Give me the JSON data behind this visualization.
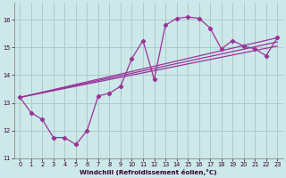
{
  "xlabel": "Windchill (Refroidissement éolien,°C)",
  "bg_color": "#cce8e8",
  "line_color": "#993399",
  "grid_color": "#aacccc",
  "xlim": [
    -0.5,
    23.5
  ],
  "ylim": [
    11,
    16.6
  ],
  "yticks": [
    11,
    12,
    13,
    14,
    15,
    16
  ],
  "xticks": [
    0,
    1,
    2,
    3,
    4,
    5,
    6,
    7,
    8,
    9,
    10,
    11,
    12,
    13,
    14,
    15,
    16,
    17,
    18,
    19,
    20,
    21,
    22,
    23
  ],
  "curve_x": [
    0,
    1,
    2,
    3,
    4,
    5,
    6,
    7,
    8,
    9,
    10,
    11,
    12,
    13,
    14,
    15,
    16,
    17,
    18,
    19,
    20,
    21,
    22,
    23
  ],
  "curve_y": [
    13.2,
    12.65,
    12.4,
    11.75,
    11.75,
    11.5,
    12.0,
    13.25,
    13.35,
    13.6,
    14.6,
    15.25,
    13.85,
    15.8,
    16.05,
    16.1,
    16.05,
    15.7,
    14.95,
    15.25,
    15.05,
    14.95,
    14.7,
    15.35
  ],
  "trend1_x": [
    0,
    23
  ],
  "trend1_y": [
    13.2,
    15.05
  ],
  "trend2_x": [
    0,
    23
  ],
  "trend2_y": [
    13.2,
    15.2
  ],
  "trend3_x": [
    0,
    23
  ],
  "trend3_y": [
    13.2,
    15.35
  ]
}
